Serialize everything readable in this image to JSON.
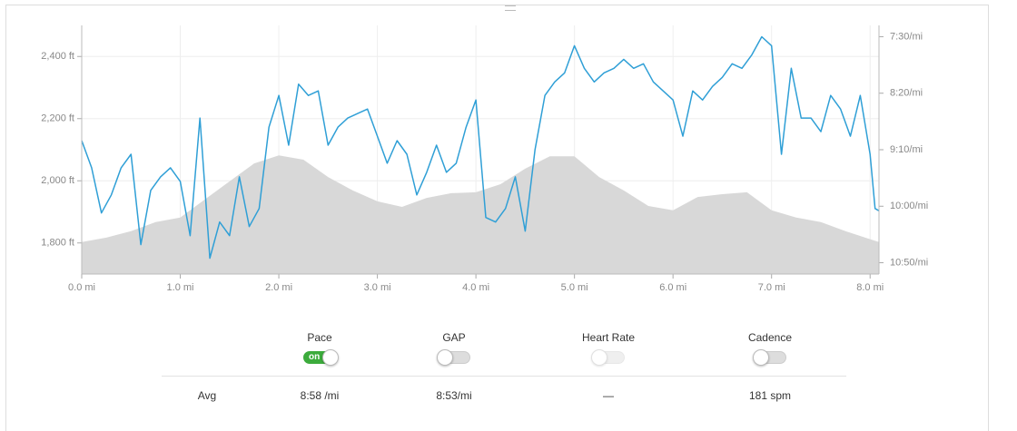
{
  "chart_data": {
    "type": "line",
    "xlim": [
      0,
      8.09
    ],
    "xticks": [
      {
        "value": 0,
        "label": "0.0 mi"
      },
      {
        "value": 1,
        "label": "1.0 mi"
      },
      {
        "value": 2,
        "label": "2.0 mi"
      },
      {
        "value": 3,
        "label": "3.0 mi"
      },
      {
        "value": 4,
        "label": "4.0 mi"
      },
      {
        "value": 5,
        "label": "5.0 mi"
      },
      {
        "value": 6,
        "label": "6.0 mi"
      },
      {
        "value": 7,
        "label": "7.0 mi"
      },
      {
        "value": 8,
        "label": "8.0 mi"
      }
    ],
    "ylim": [
      1700,
      2500
    ],
    "yticks": [
      {
        "value": 1800,
        "label": "1,800 ft"
      },
      {
        "value": 2000,
        "label": "2,000 ft"
      },
      {
        "value": 2200,
        "label": "2,200 ft"
      },
      {
        "value": 2400,
        "label": "2,400 ft"
      }
    ],
    "y2lim": [
      660,
      440
    ],
    "y2ticks": [
      {
        "value": 450,
        "label": "7:30/mi"
      },
      {
        "value": 500,
        "label": "8:20/mi"
      },
      {
        "value": 550,
        "label": "9:10/mi"
      },
      {
        "value": 600,
        "label": "10:00/mi"
      },
      {
        "value": 650,
        "label": "10:50/mi"
      }
    ],
    "grid": true,
    "series": [
      {
        "kind": "area",
        "color": "#d8d8d8",
        "x": [
          0,
          0.25,
          0.5,
          0.75,
          1,
          1.25,
          1.5,
          1.75,
          2,
          2.25,
          2.5,
          2.75,
          3,
          3.25,
          3.5,
          3.75,
          4,
          4.25,
          4.5,
          4.75,
          5,
          5.25,
          5.5,
          5.75,
          6,
          6.25,
          6.5,
          6.75,
          7,
          7.25,
          7.5,
          7.75,
          8,
          8.09
        ],
        "values": [
          1803,
          1817,
          1838,
          1867,
          1882,
          1940,
          1998,
          2056,
          2082,
          2068,
          2012,
          1969,
          1934,
          1916,
          1945,
          1960,
          1963,
          1989,
          2039,
          2079,
          2079,
          2012,
          1969,
          1919,
          1905,
          1948,
          1957,
          1963,
          1905,
          1882,
          1867,
          1838,
          1812,
          1803
        ]
      },
      {
        "kind": "line",
        "axis": "y2",
        "color": "#2f9fd6",
        "x": [
          0,
          0.1,
          0.2,
          0.3,
          0.4,
          0.5,
          0.6,
          0.7,
          0.8,
          0.9,
          1,
          1.1,
          1.2,
          1.3,
          1.4,
          1.5,
          1.6,
          1.7,
          1.8,
          1.9,
          2,
          2.1,
          2.2,
          2.3,
          2.4,
          2.5,
          2.6,
          2.7,
          2.8,
          2.9,
          3,
          3.1,
          3.2,
          3.3,
          3.4,
          3.5,
          3.6,
          3.7,
          3.8,
          3.9,
          4,
          4.1,
          4.2,
          4.3,
          4.4,
          4.5,
          4.6,
          4.7,
          4.8,
          4.9,
          5,
          5.1,
          5.2,
          5.3,
          5.4,
          5.5,
          5.6,
          5.7,
          5.8,
          5.9,
          6,
          6.1,
          6.2,
          6.3,
          6.4,
          6.5,
          6.6,
          6.7,
          6.8,
          6.9,
          7,
          7.1,
          7.2,
          7.3,
          7.4,
          7.5,
          7.6,
          7.7,
          7.8,
          7.9,
          8,
          8.05,
          8.09
        ],
        "values": [
          542,
          566,
          606,
          590,
          566,
          554,
          634,
          586,
          574,
          566,
          578,
          626,
          522,
          646,
          614,
          626,
          574,
          618,
          602,
          530,
          502,
          546,
          492,
          502,
          498,
          546,
          530,
          522,
          518,
          514,
          538,
          562,
          542,
          554,
          590,
          570,
          546,
          570,
          562,
          530,
          506,
          610,
          614,
          602,
          574,
          622,
          550,
          502,
          490,
          482,
          458,
          478,
          490,
          482,
          478,
          470,
          478,
          474,
          490,
          498,
          506,
          538,
          498,
          506,
          494,
          486,
          474,
          478,
          466,
          450,
          458,
          554,
          478,
          522,
          522,
          534,
          502,
          514,
          538,
          502,
          554,
          602,
          604
        ]
      }
    ]
  },
  "controls": {
    "toggles": [
      {
        "label": "Pace",
        "on": true,
        "on_text": "on"
      },
      {
        "label": "GAP",
        "on": false
      },
      {
        "label": "Heart Rate",
        "on": false,
        "disabled": true
      },
      {
        "label": "Cadence",
        "on": false
      }
    ]
  },
  "stats": {
    "label": "Avg",
    "values": [
      "8:58 /mi",
      "8:53/mi",
      "—",
      "181 spm"
    ]
  }
}
